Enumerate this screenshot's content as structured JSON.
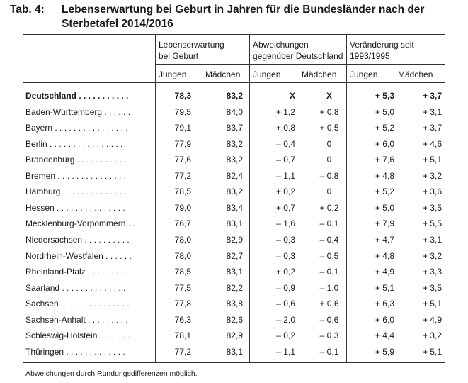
{
  "title": {
    "number": "Tab. 4:",
    "line1": "Lebenserwartung bei Geburt in Jahren für die Bundesländer nach der",
    "line2": "Sterbetafel 2014/2016"
  },
  "header": {
    "group1": [
      "Lebenserwartung",
      "bei Geburt"
    ],
    "group2": [
      "Abweichungen",
      "gegenüber Deutschland"
    ],
    "group3": [
      "Veränderung seit",
      "1993/1995"
    ],
    "jungen": "Jungen",
    "maedchen": "Mädchen"
  },
  "rows": [
    {
      "name": "Deutschland . . . . . . . . . . .",
      "lj": "78,3",
      "lm": "83,2",
      "aj": "X",
      "am": "X",
      "vj": "+ 5,3",
      "vm": "+ 3,7",
      "bold": true
    },
    {
      "name": "Baden-Württemberg . . . . . .",
      "lj": "79,5",
      "lm": "84,0",
      "aj": "+ 1,2",
      "am": "+ 0,8",
      "vj": "+ 5,0",
      "vm": "+ 3,1"
    },
    {
      "name": "Bayern . . . . . . . . . . . . . . . .",
      "lj": "79,1",
      "lm": "83,7",
      "aj": "+ 0,8",
      "am": "+ 0,5",
      "vj": "+ 5,2",
      "vm": "+ 3,7"
    },
    {
      "name": "Berlin . . . . . . . . . . . . . . . .",
      "lj": "77,9",
      "lm": "83,2",
      "aj": "– 0,4",
      "am": "0",
      "vj": "+ 6,0",
      "vm": "+ 4,6"
    },
    {
      "name": "Brandenburg . . . . . . . . . . .",
      "lj": "77,6",
      "lm": "83,2",
      "aj": "– 0,7",
      "am": "0",
      "vj": "+ 7,6",
      "vm": "+ 5,1"
    },
    {
      "name": "Bremen . . . . . . . . . . . . . . .",
      "lj": "77,2",
      "lm": "82,4",
      "aj": "– 1,1",
      "am": "– 0,8",
      "vj": "+ 4,8",
      "vm": "+ 3,2"
    },
    {
      "name": "Hamburg . . . . . . . . . . . . . .",
      "lj": "78,5",
      "lm": "83,2",
      "aj": "+ 0,2",
      "am": "0",
      "vj": "+ 5,2",
      "vm": "+ 3,6"
    },
    {
      "name": "Hessen . . . . . . . . . . . . . . .",
      "lj": "79,0",
      "lm": "83,4",
      "aj": "+ 0,7",
      "am": "+ 0,2",
      "vj": "+ 5,0",
      "vm": "+ 3,5"
    },
    {
      "name": "Mecklenburg-Vorpommern . .",
      "lj": "76,7",
      "lm": "83,1",
      "aj": "– 1,6",
      "am": "– 0,1",
      "vj": "+ 7,9",
      "vm": "+ 5,5"
    },
    {
      "name": "Niedersachsen . . . . . . . . . .",
      "lj": "78,0",
      "lm": "82,9",
      "aj": "– 0,3",
      "am": "– 0,4",
      "vj": "+ 4,7",
      "vm": "+ 3,1"
    },
    {
      "name": "Nordrhein-Westfalen . . . . . .",
      "lj": "78,0",
      "lm": "82,7",
      "aj": "– 0,3",
      "am": "– 0,5",
      "vj": "+ 4,8",
      "vm": "+ 3,2"
    },
    {
      "name": "Rheinland-Pfalz . . . . . . . . .",
      "lj": "78,5",
      "lm": "83,1",
      "aj": "+ 0,2",
      "am": "– 0,1",
      "vj": "+ 4,9",
      "vm": "+ 3,3"
    },
    {
      "name": "Saarland . . . . . . . . . . . . . .",
      "lj": "77,5",
      "lm": "82,2",
      "aj": "– 0,9",
      "am": "– 1,0",
      "vj": "+ 5,1",
      "vm": "+ 3,5"
    },
    {
      "name": "Sachsen . . . . . . . . . . . . . . .",
      "lj": "77,8",
      "lm": "83,8",
      "aj": "– 0,6",
      "am": "+ 0,6",
      "vj": "+ 6,3",
      "vm": "+ 5,1"
    },
    {
      "name": "Sachsen-Anhalt . . . . . . . . .",
      "lj": "76,3",
      "lm": "82,6",
      "aj": "– 2,0",
      "am": "– 0,6",
      "vj": "+ 6,0",
      "vm": "+ 4,9"
    },
    {
      "name": "Schleswig-Holstein . . . . . . .",
      "lj": "78,1",
      "lm": "82,9",
      "aj": "– 0,2",
      "am": "– 0,3",
      "vj": "+ 4,4",
      "vm": "+ 3,2"
    },
    {
      "name": "Thüringen . . . . . . . . . . . . .",
      "lj": "77,2",
      "lm": "83,1",
      "aj": "– 1,1",
      "am": "– 0,1",
      "vj": "+ 5,9",
      "vm": "+ 5,1"
    }
  ],
  "footnote": "Abweichungen durch Rundungsdifferenzen möglich."
}
